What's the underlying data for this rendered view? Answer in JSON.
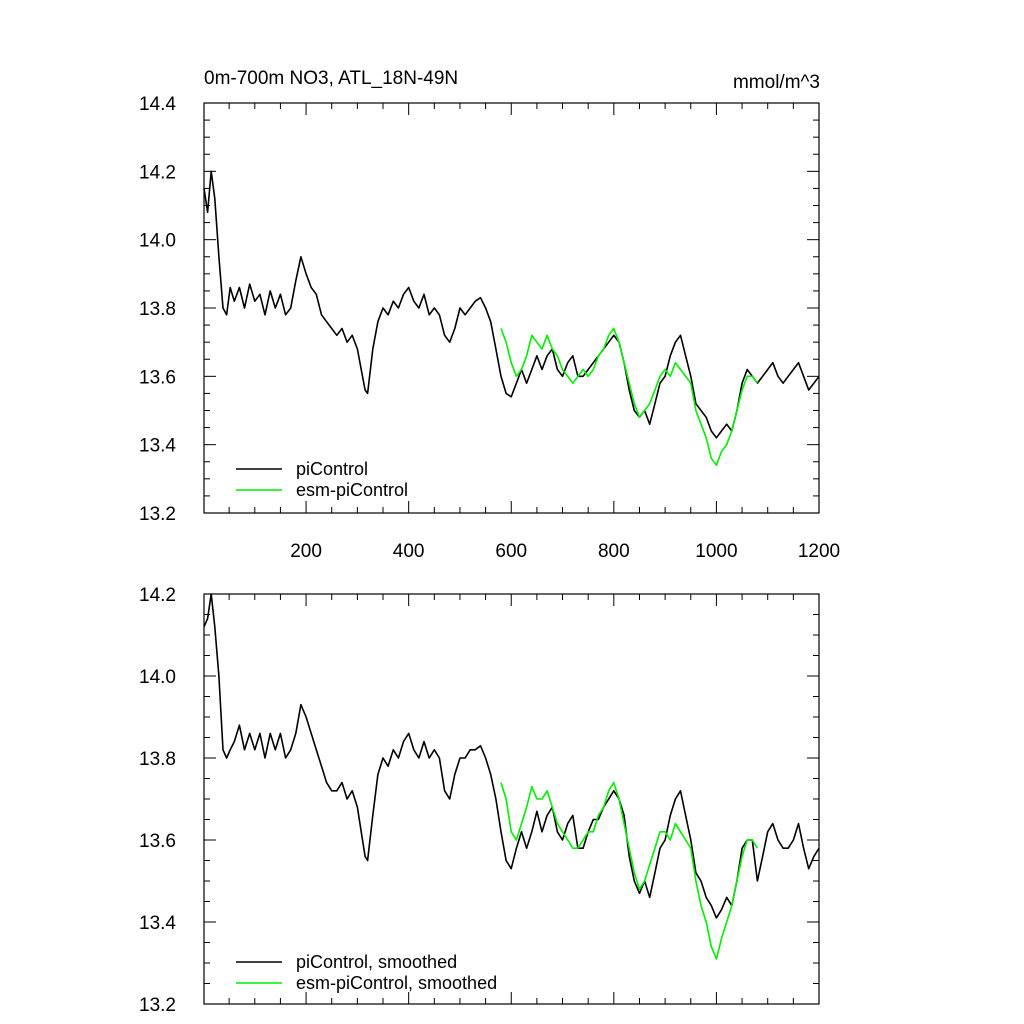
{
  "chart_data": [
    {
      "type": "line",
      "title": "0m-700m NO3, ATL_18N-49N",
      "units": "mmol/m^3",
      "xlim": [
        1,
        1200
      ],
      "ylim": [
        13.2,
        14.4
      ],
      "xticks": [
        200,
        400,
        600,
        800,
        1000,
        1200
      ],
      "yticks": [
        13.2,
        13.4,
        13.6,
        13.8,
        14.0,
        14.2,
        14.4
      ],
      "xticks_shown": true,
      "grid": false,
      "legend_position": "bottom-left",
      "series": [
        {
          "name": "piControl",
          "color": "#000000",
          "x": [
            1,
            8,
            15,
            22,
            30,
            38,
            45,
            52,
            60,
            70,
            80,
            90,
            100,
            110,
            120,
            130,
            140,
            150,
            160,
            170,
            180,
            190,
            200,
            210,
            220,
            230,
            240,
            250,
            260,
            270,
            280,
            290,
            300,
            310,
            315,
            320,
            330,
            340,
            350,
            360,
            370,
            380,
            390,
            400,
            410,
            420,
            430,
            440,
            450,
            460,
            470,
            480,
            490,
            500,
            510,
            520,
            530,
            540,
            550,
            560,
            570,
            580,
            590,
            600,
            610,
            620,
            630,
            640,
            650,
            660,
            670,
            680,
            690,
            700,
            710,
            720,
            730,
            740,
            750,
            760,
            770,
            780,
            790,
            800,
            810,
            820,
            830,
            840,
            850,
            860,
            870,
            880,
            890,
            900,
            910,
            920,
            930,
            940,
            950,
            960,
            970,
            980,
            990,
            1000,
            1010,
            1020,
            1030,
            1040,
            1050,
            1060,
            1070,
            1080,
            1090,
            1100,
            1110,
            1120,
            1130,
            1140,
            1150,
            1160,
            1170,
            1180,
            1190,
            1200
          ],
          "values": [
            14.15,
            14.08,
            14.2,
            14.12,
            13.95,
            13.8,
            13.78,
            13.86,
            13.82,
            13.86,
            13.8,
            13.87,
            13.82,
            13.84,
            13.78,
            13.85,
            13.8,
            13.84,
            13.78,
            13.8,
            13.88,
            13.95,
            13.9,
            13.86,
            13.84,
            13.78,
            13.76,
            13.74,
            13.72,
            13.74,
            13.7,
            13.72,
            13.68,
            13.6,
            13.56,
            13.55,
            13.68,
            13.76,
            13.8,
            13.78,
            13.82,
            13.8,
            13.84,
            13.86,
            13.82,
            13.8,
            13.84,
            13.78,
            13.8,
            13.78,
            13.72,
            13.7,
            13.74,
            13.8,
            13.78,
            13.8,
            13.82,
            13.83,
            13.8,
            13.76,
            13.68,
            13.6,
            13.55,
            13.54,
            13.58,
            13.62,
            13.58,
            13.62,
            13.66,
            13.62,
            13.66,
            13.68,
            13.62,
            13.6,
            13.64,
            13.66,
            13.6,
            13.6,
            13.62,
            13.64,
            13.66,
            13.68,
            13.7,
            13.72,
            13.7,
            13.64,
            13.56,
            13.5,
            13.48,
            13.5,
            13.46,
            13.52,
            13.58,
            13.6,
            13.66,
            13.7,
            13.72,
            13.66,
            13.6,
            13.52,
            13.5,
            13.48,
            13.44,
            13.42,
            13.44,
            13.46,
            13.44,
            13.5,
            13.58,
            13.62,
            13.6,
            13.58,
            13.6,
            13.62,
            13.64,
            13.6,
            13.58,
            13.6,
            13.62,
            13.64,
            13.6,
            13.56,
            13.58,
            13.6
          ]
        },
        {
          "name": "esm-piControl",
          "color": "#00ee00",
          "x": [
            580,
            590,
            600,
            610,
            620,
            630,
            640,
            650,
            660,
            670,
            680,
            690,
            700,
            710,
            720,
            730,
            740,
            750,
            760,
            770,
            780,
            790,
            800,
            810,
            820,
            830,
            840,
            850,
            860,
            870,
            880,
            890,
            900,
            910,
            920,
            930,
            940,
            950,
            960,
            970,
            980,
            990,
            1000,
            1010,
            1020,
            1030,
            1040,
            1050,
            1060,
            1070,
            1080
          ],
          "values": [
            13.74,
            13.7,
            13.64,
            13.6,
            13.62,
            13.66,
            13.72,
            13.7,
            13.68,
            13.72,
            13.68,
            13.66,
            13.62,
            13.6,
            13.58,
            13.6,
            13.62,
            13.6,
            13.62,
            13.66,
            13.68,
            13.72,
            13.74,
            13.7,
            13.64,
            13.58,
            13.52,
            13.48,
            13.5,
            13.52,
            13.56,
            13.6,
            13.62,
            13.6,
            13.64,
            13.62,
            13.6,
            13.58,
            13.5,
            13.46,
            13.42,
            13.36,
            13.34,
            13.38,
            13.4,
            13.44,
            13.5,
            13.56,
            13.6,
            13.6,
            13.58
          ]
        }
      ]
    },
    {
      "type": "line",
      "xlim": [
        1,
        1200
      ],
      "ylim": [
        13.2,
        14.2
      ],
      "yticks": [
        13.2,
        13.4,
        13.6,
        13.8,
        14.0,
        14.2
      ],
      "xticks_shown": false,
      "grid": false,
      "legend_position": "bottom-left",
      "series": [
        {
          "name": "piControl, smoothed",
          "color": "#000000",
          "x": [
            1,
            8,
            15,
            22,
            30,
            38,
            45,
            52,
            60,
            70,
            80,
            90,
            100,
            110,
            120,
            130,
            140,
            150,
            160,
            170,
            180,
            190,
            200,
            210,
            220,
            230,
            240,
            250,
            260,
            270,
            280,
            290,
            300,
            310,
            315,
            320,
            330,
            340,
            350,
            360,
            370,
            380,
            390,
            400,
            410,
            420,
            430,
            440,
            450,
            460,
            470,
            480,
            490,
            500,
            510,
            520,
            530,
            540,
            550,
            560,
            570,
            580,
            590,
            600,
            610,
            620,
            630,
            640,
            650,
            660,
            670,
            680,
            690,
            700,
            710,
            720,
            730,
            740,
            750,
            760,
            770,
            780,
            790,
            800,
            810,
            820,
            830,
            840,
            850,
            860,
            870,
            880,
            890,
            900,
            910,
            920,
            930,
            940,
            950,
            960,
            970,
            980,
            990,
            1000,
            1010,
            1020,
            1030,
            1040,
            1050,
            1060,
            1070,
            1080,
            1090,
            1100,
            1110,
            1120,
            1130,
            1140,
            1150,
            1160,
            1170,
            1180,
            1190,
            1200
          ],
          "values": [
            14.12,
            14.14,
            14.2,
            14.12,
            14.0,
            13.82,
            13.8,
            13.82,
            13.84,
            13.88,
            13.82,
            13.86,
            13.82,
            13.86,
            13.8,
            13.86,
            13.82,
            13.86,
            13.8,
            13.82,
            13.86,
            13.93,
            13.9,
            13.86,
            13.82,
            13.78,
            13.74,
            13.72,
            13.72,
            13.74,
            13.7,
            13.72,
            13.68,
            13.6,
            13.56,
            13.55,
            13.66,
            13.76,
            13.8,
            13.78,
            13.82,
            13.8,
            13.84,
            13.86,
            13.82,
            13.8,
            13.84,
            13.8,
            13.82,
            13.8,
            13.72,
            13.7,
            13.76,
            13.8,
            13.8,
            13.82,
            13.82,
            13.83,
            13.8,
            13.76,
            13.7,
            13.62,
            13.55,
            13.53,
            13.58,
            13.62,
            13.58,
            13.62,
            13.67,
            13.62,
            13.66,
            13.68,
            13.62,
            13.6,
            13.64,
            13.66,
            13.58,
            13.58,
            13.62,
            13.65,
            13.65,
            13.68,
            13.7,
            13.72,
            13.7,
            13.66,
            13.56,
            13.5,
            13.47,
            13.5,
            13.46,
            13.52,
            13.58,
            13.6,
            13.66,
            13.7,
            13.72,
            13.66,
            13.6,
            13.52,
            13.5,
            13.46,
            13.44,
            13.41,
            13.43,
            13.46,
            13.44,
            13.5,
            13.58,
            13.6,
            13.6,
            13.5,
            13.56,
            13.62,
            13.64,
            13.6,
            13.58,
            13.58,
            13.6,
            13.64,
            13.58,
            13.53,
            13.56,
            13.58
          ]
        },
        {
          "name": "esm-piControl, smoothed",
          "color": "#00ee00",
          "x": [
            580,
            590,
            600,
            610,
            620,
            630,
            640,
            650,
            660,
            670,
            680,
            690,
            700,
            710,
            720,
            730,
            740,
            750,
            760,
            770,
            780,
            790,
            800,
            810,
            820,
            830,
            840,
            850,
            860,
            870,
            880,
            890,
            900,
            910,
            920,
            930,
            940,
            950,
            960,
            970,
            980,
            990,
            1000,
            1010,
            1020,
            1030,
            1040,
            1050,
            1060,
            1070,
            1080
          ],
          "values": [
            13.74,
            13.7,
            13.62,
            13.6,
            13.64,
            13.68,
            13.73,
            13.7,
            13.7,
            13.72,
            13.68,
            13.64,
            13.62,
            13.6,
            13.58,
            13.58,
            13.6,
            13.62,
            13.62,
            13.66,
            13.68,
            13.72,
            13.74,
            13.7,
            13.64,
            13.58,
            13.52,
            13.48,
            13.5,
            13.54,
            13.58,
            13.62,
            13.62,
            13.6,
            13.64,
            13.62,
            13.6,
            13.58,
            13.5,
            13.44,
            13.4,
            13.34,
            13.31,
            13.36,
            13.4,
            13.44,
            13.5,
            13.56,
            13.6,
            13.6,
            13.58
          ]
        }
      ]
    }
  ]
}
